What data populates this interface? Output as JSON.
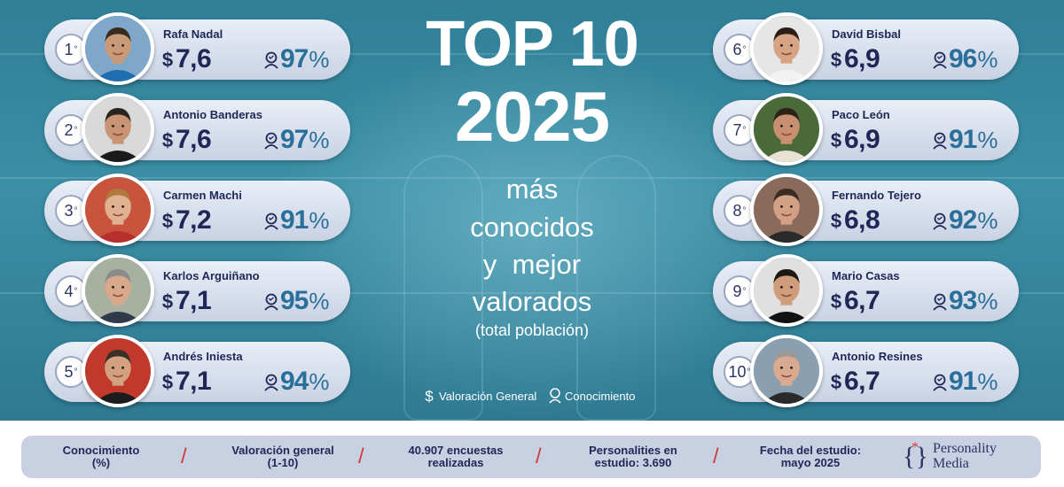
{
  "title": {
    "line1": "TOP 10",
    "line2": "2025"
  },
  "subtitle": [
    "más",
    "conocidos",
    "y  mejor",
    "valorados",
    "(total población)"
  ],
  "legend": {
    "rating": "Valoración General",
    "knowledge": "Conocimiento"
  },
  "rank_suffix": "°",
  "percent_sign": "%",
  "dollar_sign": "$",
  "people": [
    {
      "rank": "1",
      "name": "Rafa Nadal",
      "score": "7,6",
      "knowledge": "97",
      "skin": "#c99a78",
      "hair": "#3a2a1e",
      "shirt": "#1f6fb0",
      "bg": "#7fa7c9"
    },
    {
      "rank": "2",
      "name": "Antonio Banderas",
      "score": "7,6",
      "knowledge": "97",
      "skin": "#c89473",
      "hair": "#2a2420",
      "shirt": "#1a1a1a",
      "bg": "#d9d9d9"
    },
    {
      "rank": "3",
      "name": "Carmen Machi",
      "score": "7,2",
      "knowledge": "91",
      "skin": "#e0b090",
      "hair": "#b07a3e",
      "shirt": "#b8302c",
      "bg": "#c9543e"
    },
    {
      "rank": "4",
      "name": "Karlos Arguiñano",
      "score": "7,1",
      "knowledge": "95",
      "skin": "#d7a98a",
      "hair": "#8a8a8a",
      "shirt": "#2f3a4a",
      "bg": "#a8b0a0"
    },
    {
      "rank": "5",
      "name": "Andrés Iniesta",
      "score": "7,1",
      "knowledge": "94",
      "skin": "#d3a080",
      "hair": "#3a3028",
      "shirt": "#1c1c1c",
      "bg": "#c0392b"
    },
    {
      "rank": "6",
      "name": "David Bisbal",
      "score": "6,9",
      "knowledge": "96",
      "skin": "#d6a383",
      "hair": "#2a1e16",
      "shirt": "#f2f2f2",
      "bg": "#e6e6e6"
    },
    {
      "rank": "7",
      "name": "Paco León",
      "score": "6,9",
      "knowledge": "91",
      "skin": "#c89070",
      "hair": "#2c2218",
      "shirt": "#e8e2d4",
      "bg": "#4a6a3a"
    },
    {
      "rank": "8",
      "name": "Fernando Tejero",
      "score": "6,8",
      "knowledge": "92",
      "skin": "#d2a084",
      "hair": "#3a2c22",
      "shirt": "#2a2a2a",
      "bg": "#8a6a5a"
    },
    {
      "rank": "9",
      "name": "Mario Casas",
      "score": "6,7",
      "knowledge": "93",
      "skin": "#cf9c7c",
      "hair": "#1e1814",
      "shirt": "#111111",
      "bg": "#e0e0e0"
    },
    {
      "rank": "10",
      "name": "Antonio Resines",
      "score": "6,7",
      "knowledge": "91",
      "skin": "#d9a990",
      "hair": "#9a9a9a",
      "shirt": "#2a2a2a",
      "bg": "#8aa0b0"
    }
  ],
  "footer": {
    "items": [
      [
        "Conocimiento",
        "(%)"
      ],
      [
        "Valoración general",
        "(1-10)"
      ],
      [
        "40.907 encuestas",
        "realizadas"
      ],
      [
        "Personalities en",
        "estudio: 3.690"
      ],
      [
        "Fecha del estudio:",
        "mayo 2025"
      ]
    ],
    "separator": "/",
    "brand": [
      "Personality",
      "Media"
    ]
  },
  "colors": {
    "accent_red": "#d23a3a",
    "navy": "#1e2756",
    "teal_bg": "#3b8fa6"
  }
}
